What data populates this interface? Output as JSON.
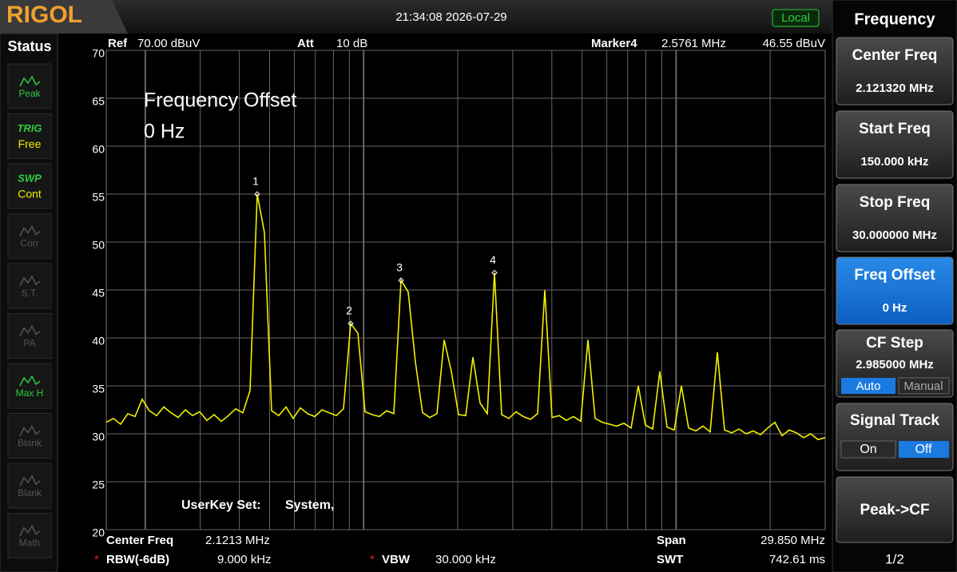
{
  "header": {
    "logo": "RIGOL",
    "datetime": "21:34:08 2026-07-29",
    "mode": "Local"
  },
  "status": {
    "title": "Status",
    "items": [
      {
        "label": "Peak",
        "active": true
      },
      {
        "label": "TRIG",
        "value": "Free",
        "active": true
      },
      {
        "label": "SWP",
        "value": "Cont",
        "active": true
      },
      {
        "label": "Corr",
        "active": false
      },
      {
        "label": "S.T.",
        "active": false
      },
      {
        "label": "PA",
        "active": false
      },
      {
        "label": "Max H",
        "active": true
      },
      {
        "label": "Blank",
        "active": false
      },
      {
        "label": "Blank",
        "active": false
      },
      {
        "label": "Math",
        "active": false
      }
    ]
  },
  "display": {
    "ref_label": "Ref",
    "ref_value": "70.00 dBuV",
    "att_label": "Att",
    "att_value": "10 dB",
    "marker_label": "Marker4",
    "marker_freq": "2.5761 MHz",
    "marker_amp": "46.55 dBuV",
    "annotation": [
      "Frequency Offset",
      "0 Hz"
    ],
    "userkey_label": "UserKey Set:",
    "userkey_value": "System,",
    "ylim": [
      20,
      70
    ],
    "yticks": [
      70,
      65,
      60,
      55,
      50,
      45,
      40,
      35,
      30,
      25,
      20
    ],
    "trace_color": "#f2f000",
    "trace": [
      31.2,
      31.6,
      31.0,
      32.1,
      31.8,
      33.6,
      32.4,
      31.9,
      32.8,
      32.2,
      31.7,
      32.5,
      31.9,
      32.3,
      31.4,
      32.0,
      31.3,
      31.9,
      32.6,
      32.2,
      34.5,
      55,
      51,
      32.4,
      31.9,
      32.8,
      31.6,
      32.7,
      32.1,
      31.8,
      32.5,
      32.2,
      31.9,
      32.6,
      41.5,
      40.5,
      32.3,
      32.0,
      31.8,
      32.4,
      32.1,
      46,
      44.8,
      37.5,
      32.2,
      31.7,
      32.1,
      39.8,
      36.5,
      32.0,
      31.9,
      38,
      33.2,
      32.1,
      46.8,
      32.0,
      31.6,
      32.3,
      31.8,
      31.5,
      32.1,
      45,
      31.7,
      31.9,
      31.4,
      31.8,
      31.3,
      39.8,
      31.6,
      31.2,
      31.0,
      30.8,
      31.1,
      30.6,
      35,
      30.9,
      30.5,
      36.5,
      30.7,
      30.4,
      35,
      30.6,
      30.3,
      30.8,
      30.2,
      38.5,
      30.4,
      30.1,
      30.5,
      30.0,
      30.3,
      29.9,
      30.6,
      31.2,
      29.8,
      30.4,
      30.1,
      29.6,
      30.0,
      29.4,
      29.6
    ],
    "markers": [
      "1",
      "2",
      "3",
      "4"
    ]
  },
  "footer": {
    "center_label": "Center Freq",
    "center_value": "2.1213 MHz",
    "span_label": "Span",
    "span_value": "29.850 MHz",
    "rbw_flag": "*",
    "rbw_label": "RBW(-6dB)",
    "rbw_value": "9.000 kHz",
    "vbw_flag": "*",
    "vbw_label": "VBW",
    "vbw_value": "30.000 kHz",
    "swt_label": "SWT",
    "swt_value": "742.61 ms"
  },
  "menu": {
    "title": "Frequency",
    "center_freq": {
      "label": "Center Freq",
      "value": "2.121320 MHz"
    },
    "start_freq": {
      "label": "Start Freq",
      "value": "150.000 kHz"
    },
    "stop_freq": {
      "label": "Stop Freq",
      "value": "30.000000 MHz"
    },
    "freq_offset": {
      "label": "Freq Offset",
      "value": "0 Hz"
    },
    "cf_step": {
      "label": "CF Step",
      "value": "2.985000 MHz",
      "options": [
        "Auto",
        "Manual"
      ]
    },
    "signal_track": {
      "label": "Signal Track",
      "options": [
        "On",
        "Off"
      ]
    },
    "peak_cf": {
      "label": "Peak->CF"
    },
    "page": "1/2"
  }
}
